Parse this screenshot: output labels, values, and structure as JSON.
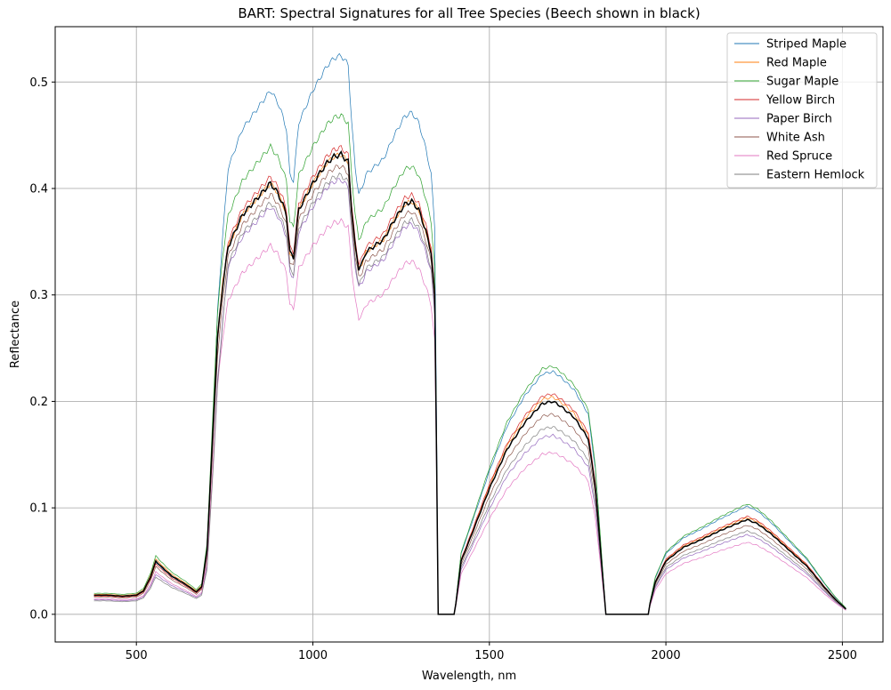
{
  "chart_data": {
    "type": "line",
    "title": "BART: Spectral Signatures for all Tree Species (Beech shown in black)",
    "xlabel": "Wavelength, nm",
    "ylabel": "Reflectance",
    "xlim": [
      270,
      2615
    ],
    "ylim": [
      -0.026,
      0.552
    ],
    "xticks": [
      500,
      1000,
      1500,
      2000,
      2500
    ],
    "yticks": [
      0.0,
      0.1,
      0.2,
      0.3,
      0.4,
      0.5
    ],
    "grid": true,
    "legend_position": "top-right",
    "base_profile": {
      "x": [
        380,
        420,
        460,
        500,
        520,
        540,
        555,
        570,
        600,
        640,
        670,
        685,
        700,
        715,
        730,
        745,
        760,
        800,
        840,
        880,
        900,
        915,
        925,
        935,
        945,
        960,
        1000,
        1040,
        1060,
        1080,
        1100,
        1110,
        1120,
        1130,
        1140,
        1150,
        1170,
        1200,
        1230,
        1260,
        1280,
        1300,
        1320,
        1335,
        1345,
        1350,
        1355,
        1400,
        1405,
        1420,
        1450,
        1500,
        1550,
        1600,
        1650,
        1680,
        1700,
        1740,
        1780,
        1800,
        1815,
        1830,
        1850,
        1950,
        1955,
        1970,
        2000,
        2050,
        2100,
        2150,
        2200,
        2230,
        2260,
        2300,
        2350,
        2400,
        2450,
        2480,
        2500,
        2510
      ],
      "y": [
        0.018,
        0.018,
        0.017,
        0.018,
        0.022,
        0.035,
        0.05,
        0.045,
        0.036,
        0.028,
        0.021,
        0.026,
        0.06,
        0.16,
        0.26,
        0.31,
        0.345,
        0.375,
        0.39,
        0.405,
        0.396,
        0.385,
        0.375,
        0.34,
        0.335,
        0.38,
        0.405,
        0.424,
        0.43,
        0.432,
        0.425,
        0.38,
        0.345,
        0.325,
        0.33,
        0.34,
        0.345,
        0.352,
        0.37,
        0.385,
        0.388,
        0.38,
        0.36,
        0.34,
        0.3,
        0.16,
        0.0,
        0.0,
        0.01,
        0.05,
        0.075,
        0.118,
        0.155,
        0.18,
        0.198,
        0.2,
        0.196,
        0.185,
        0.165,
        0.12,
        0.06,
        0.0,
        0.0,
        0.0,
        0.01,
        0.03,
        0.05,
        0.063,
        0.07,
        0.078,
        0.085,
        0.089,
        0.085,
        0.075,
        0.06,
        0.045,
        0.025,
        0.014,
        0.008,
        0.005
      ]
    },
    "series": [
      {
        "name": "Striped Maple",
        "color": "#1f77b4",
        "scale_nir": 1.215,
        "scale_swir": 1.14,
        "scale_vis": 0.98
      },
      {
        "name": "Red Maple",
        "color": "#ff7f0e",
        "scale_nir": 1.0,
        "scale_swir": 1.02,
        "scale_vis": 1.04
      },
      {
        "name": "Sugar Maple",
        "color": "#2ca02c",
        "scale_nir": 1.085,
        "scale_swir": 1.165,
        "scale_vis": 1.1
      },
      {
        "name": "Yellow Birch",
        "color": "#d62728",
        "scale_nir": 1.015,
        "scale_swir": 1.035,
        "scale_vis": 0.95
      },
      {
        "name": "Paper Birch",
        "color": "#9467bd",
        "scale_nir": 0.945,
        "scale_swir": 0.84,
        "scale_vis": 0.75
      },
      {
        "name": "White Ash",
        "color": "#8c564b",
        "scale_nir": 0.975,
        "scale_swir": 0.94,
        "scale_vis": 0.9
      },
      {
        "name": "Red Spruce",
        "color": "#e377c2",
        "scale_nir": 0.855,
        "scale_swir": 0.76,
        "scale_vis": 0.8
      },
      {
        "name": "Eastern Hemlock",
        "color": "#7f7f7f",
        "scale_nir": 0.955,
        "scale_swir": 0.88,
        "scale_vis": 0.7
      }
    ],
    "highlight_series": {
      "name": "Beech",
      "color": "#000000",
      "scale_nir": 1.0,
      "scale_swir": 1.0,
      "scale_vis": 1.0,
      "in_legend": false
    }
  }
}
